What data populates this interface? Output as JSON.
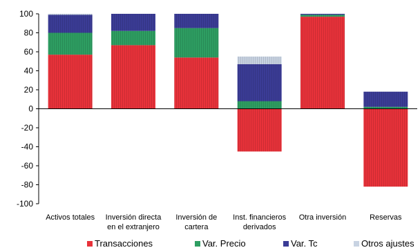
{
  "chart_data": {
    "type": "bar",
    "stacked": true,
    "title": "",
    "xlabel": "",
    "ylabel": "",
    "ylim": [
      -100,
      100
    ],
    "yticks": [
      100,
      80,
      60,
      40,
      20,
      0,
      -20,
      -40,
      -60,
      -80,
      -100
    ],
    "categories": [
      [
        "Activos totales"
      ],
      [
        "Inversión directa",
        "en el extranjero"
      ],
      [
        "Inversión de",
        "cartera"
      ],
      [
        "Inst. financieros",
        "derivados"
      ],
      [
        "Otra inversión"
      ],
      [
        "Reservas"
      ]
    ],
    "series": [
      {
        "name": "Transacciones",
        "color": "#e8323a",
        "values": [
          57,
          67,
          54,
          -45,
          97,
          -82
        ]
      },
      {
        "name": "Var. Precio",
        "color": "#2e9e62",
        "values": [
          23,
          15,
          31,
          8,
          2,
          2
        ]
      },
      {
        "name": "Var. Tc",
        "color": "#3b3c96",
        "values": [
          19,
          18,
          15,
          39,
          1,
          16
        ]
      },
      {
        "name": "Otros ajustes",
        "color": "#c8d3e2",
        "values": [
          1,
          0,
          0,
          8,
          0,
          0
        ]
      }
    ],
    "grid": false,
    "legend_position": "bottom"
  }
}
